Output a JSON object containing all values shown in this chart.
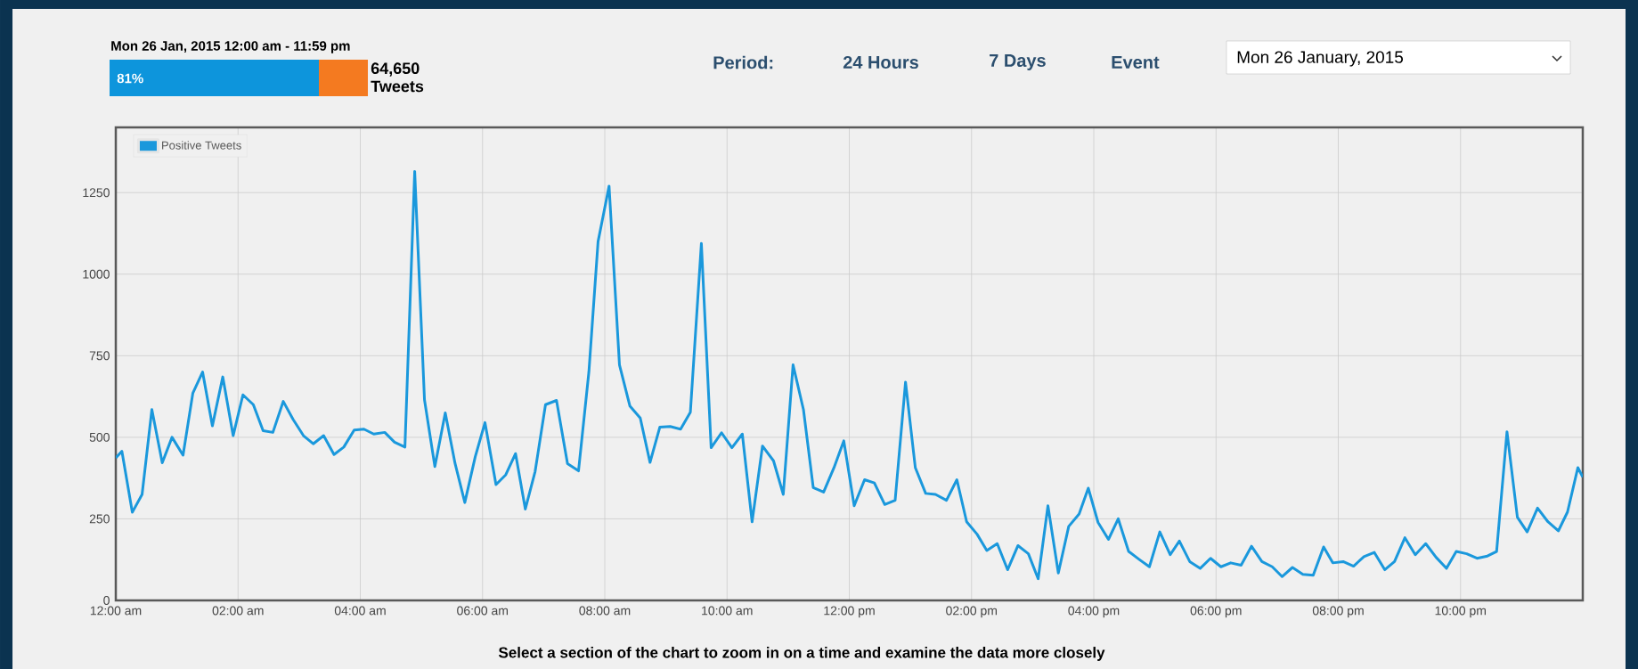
{
  "chart_data": {
    "type": "line",
    "title": "Mon 26 Jan, 2015 12:00 am - 11:59 pm",
    "annotations": [
      "81%",
      "64,650",
      "Tweets",
      "Period:",
      "24 Hours",
      "7 Days",
      "Event",
      "Mon 26 January, 2015",
      "Select a section of the chart to zoom in on a time and examine the data more closely"
    ],
    "x": [
      0,
      0.1,
      0.27,
      0.43,
      0.59,
      0.76,
      0.92,
      1.1,
      1.26,
      1.42,
      1.58,
      1.75,
      1.92,
      2.08,
      2.25,
      2.41,
      2.57,
      2.74,
      2.9,
      3.07,
      3.23,
      3.4,
      3.57,
      3.73,
      3.9,
      4.06,
      4.22,
      4.4,
      4.56,
      4.73,
      4.89,
      5.05,
      5.22,
      5.39,
      5.55,
      5.71,
      5.88,
      6.04,
      6.22,
      6.38,
      6.54,
      6.7,
      6.86,
      7.03,
      7.21,
      7.39,
      7.57,
      7.74,
      7.89,
      8.07,
      8.24,
      8.41,
      8.58,
      8.74,
      8.9,
      9.07,
      9.24,
      9.4,
      9.58,
      9.74,
      9.91,
      10.08,
      10.25,
      10.41,
      10.58,
      10.76,
      10.92,
      11.08,
      11.25,
      11.41,
      11.58,
      11.75,
      11.91,
      12.08,
      12.25,
      12.41,
      12.58,
      12.75,
      12.92,
      13.08,
      13.25,
      13.41,
      13.59,
      13.76,
      13.92,
      14.09,
      14.25,
      14.42,
      14.59,
      14.76,
      14.93,
      15.09,
      15.25,
      15.42,
      15.59,
      15.76,
      15.91,
      16.07,
      16.24,
      16.4,
      16.57,
      16.74,
      16.91,
      17.08,
      17.25,
      17.4,
      17.57,
      17.74,
      17.91,
      18.08,
      18.24,
      18.41,
      18.58,
      18.75,
      18.92,
      19.08,
      19.25,
      19.42,
      19.59,
      19.76,
      19.91,
      20.08,
      20.25,
      20.42,
      20.59,
      20.76,
      20.92,
      21.09,
      21.26,
      21.43,
      21.6,
      21.77,
      21.93,
      22.1,
      22.27,
      22.44,
      22.59,
      22.76,
      22.93,
      23.09,
      23.26,
      23.43,
      23.6,
      23.75,
      23.92,
      24.0
    ],
    "series": [
      {
        "name": "Positive Tweets",
        "color": "#1a98dc",
        "values": [
          437,
          457,
          270,
          325,
          585,
          422,
          500,
          445,
          635,
          700,
          535,
          685,
          505,
          630,
          600,
          520,
          515,
          610,
          555,
          505,
          480,
          505,
          447,
          470,
          522,
          525,
          510,
          515,
          485,
          470,
          1315,
          615,
          410,
          575,
          420,
          300,
          440,
          545,
          355,
          385,
          450,
          280,
          395,
          600,
          613,
          419,
          397,
          701,
          1100,
          1270,
          722,
          596,
          559,
          423,
          531,
          533,
          525,
          577,
          1094,
          468,
          514,
          468,
          510,
          241,
          473,
          428,
          325,
          722,
          585,
          346,
          332,
          407,
          489,
          290,
          370,
          360,
          294,
          307,
          669,
          407,
          328,
          325,
          307,
          370,
          241,
          203,
          153,
          174,
          94,
          168,
          143,
          66,
          290,
          84,
          227,
          265,
          344,
          239,
          187,
          250,
          150,
          126,
          103,
          210,
          140,
          182,
          119,
          98,
          129,
          103,
          115,
          108,
          166,
          119,
          103,
          73,
          101,
          80,
          77,
          164,
          115,
          119,
          105,
          134,
          147,
          94,
          119,
          192,
          140,
          174,
          132,
          98,
          150,
          143,
          129,
          136,
          150,
          517,
          255,
          210,
          283,
          241,
          213,
          271,
          407,
          378
        ]
      }
    ],
    "xlim": [
      0,
      24
    ],
    "ylim": [
      0,
      1450
    ],
    "xticks": [
      {
        "value": 0,
        "label": "12:00 am"
      },
      {
        "value": 2,
        "label": "02:00 am"
      },
      {
        "value": 4,
        "label": "04:00 am"
      },
      {
        "value": 6,
        "label": "06:00 am"
      },
      {
        "value": 8,
        "label": "08:00 am"
      },
      {
        "value": 10,
        "label": "10:00 am"
      },
      {
        "value": 12,
        "label": "12:00 pm"
      },
      {
        "value": 14,
        "label": "02:00 pm"
      },
      {
        "value": 16,
        "label": "04:00 pm"
      },
      {
        "value": 18,
        "label": "06:00 pm"
      },
      {
        "value": 20,
        "label": "08:00 pm"
      },
      {
        "value": 22,
        "label": "10:00 pm"
      }
    ],
    "yticks": [
      0,
      250,
      500,
      750,
      1000,
      1250
    ],
    "grid": true,
    "legend": "top left"
  }
}
